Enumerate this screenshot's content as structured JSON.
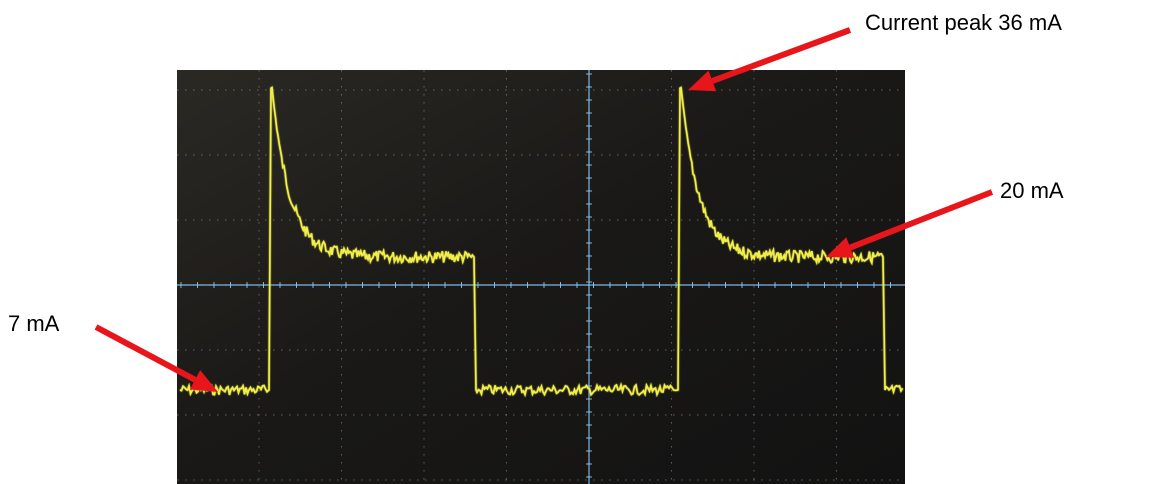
{
  "chart_data": {
    "type": "line",
    "series": [
      {
        "values": []
      }
    ],
    "ylabel": "",
    "xlabel": "",
    "annotations": [
      {
        "text": "Current peak 36 mA",
        "value_mA": 36
      },
      {
        "text": "20 mA",
        "value_mA": 20
      },
      {
        "text": "7 mA",
        "value_mA": 7
      }
    ],
    "grid": true,
    "screen": {
      "divisions_x": 10,
      "divisions_y": 8
    }
  },
  "colors": {
    "trace": "#f2ef4a",
    "screen_bg": "#1f1d1a",
    "grid": "#9aa0a6",
    "center_axis": "#8fd0ff",
    "arrow": "#e8161b"
  }
}
